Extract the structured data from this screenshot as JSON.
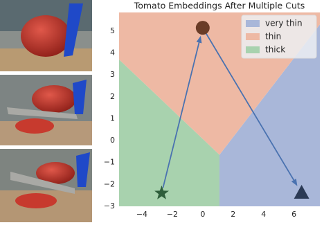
{
  "chart_data": {
    "type": "region-scatter",
    "title": "Tomato Embeddings After Multiple Cuts",
    "xlim": [
      -5.5,
      7.7
    ],
    "ylim": [
      -3,
      5.85
    ],
    "xticks": [
      {
        "value": -4,
        "label": "−4"
      },
      {
        "value": -2,
        "label": "−2"
      },
      0,
      2,
      4,
      6
    ],
    "yticks": [
      {
        "value": -3,
        "label": "−3"
      },
      {
        "value": -2,
        "label": "−2"
      },
      {
        "value": -1,
        "label": "−1"
      },
      0,
      1,
      2,
      3,
      4,
      5
    ],
    "regions": [
      {
        "name": "very thin",
        "color": "#a9b7d9",
        "x": [
          1.1,
          7.7,
          7.7,
          1.1
        ],
        "y": [
          -0.65,
          5.3,
          -3,
          -3
        ]
      },
      {
        "name": "thin",
        "color": "#eeb9a4",
        "x": [
          -5.5,
          -5.5,
          7.7,
          7.7,
          1.1
        ],
        "y": [
          3.7,
          5.85,
          5.85,
          5.3,
          -0.65
        ]
      },
      {
        "name": "thick",
        "color": "#a8d2ae",
        "x": [
          -5.5,
          -5.5,
          1.1,
          1.1
        ],
        "y": [
          -3,
          3.7,
          -0.65,
          -3
        ]
      }
    ],
    "points": [
      {
        "x": -2.7,
        "y": -2.4,
        "marker": "star",
        "color": "#2e5e3b"
      },
      {
        "x": 0.0,
        "y": 5.15,
        "marker": "circle",
        "color": "#6a3c27"
      },
      {
        "x": 6.5,
        "y": -2.4,
        "marker": "triangle",
        "color": "#2b3a55"
      }
    ],
    "arrow_color": "#4a72b0",
    "legend": "upper right"
  }
}
